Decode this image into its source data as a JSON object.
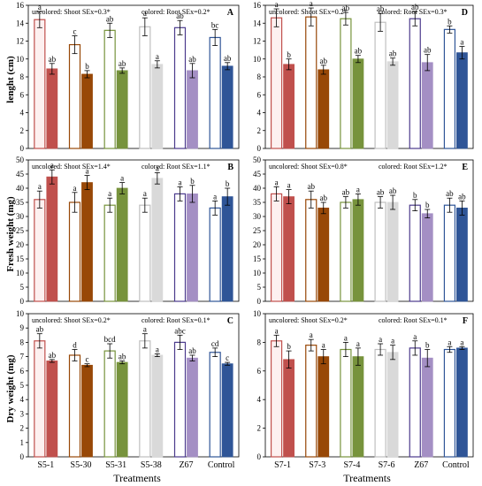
{
  "figure": {
    "x_title": "Treatments",
    "y_titles": [
      "lenght (cm)",
      "Fresh weight (mg)",
      "Dry weight (mg)"
    ]
  },
  "chart_data": [
    {
      "panel": "A",
      "type": "bar",
      "col": 0,
      "row": 0,
      "note_left": "uncolored: Shoot SEx=0.3*",
      "note_right": "colored: Root SEx=0.2*",
      "ylim": [
        0,
        16
      ],
      "yticks": [
        0,
        2,
        4,
        6,
        8,
        10,
        12,
        14,
        16
      ],
      "categories": [
        "S5-1",
        "S5-30",
        "S5-31",
        "S5-38",
        "Z67",
        "Control"
      ],
      "series": [
        {
          "values": [
            14.4,
            11.6,
            13.2,
            13.6,
            13.5,
            12.4
          ],
          "errors": [
            0.9,
            1.0,
            0.8,
            1.0,
            0.8,
            0.9
          ],
          "letters": [
            "a",
            "c",
            "ab",
            "a",
            "ab",
            "bc"
          ]
        },
        {
          "values": [
            8.9,
            8.3,
            8.7,
            9.4,
            8.7,
            9.2
          ],
          "errors": [
            0.6,
            0.4,
            0.3,
            0.4,
            0.8,
            0.4
          ],
          "letters": [
            "ab",
            "b",
            "ab",
            "a",
            "ab",
            "ab"
          ]
        }
      ]
    },
    {
      "panel": "D",
      "type": "bar",
      "col": 1,
      "row": 0,
      "note_left": "uncolored: Shoot SEx=0.2*",
      "note_right": "colored: Root SEx=0.3*",
      "ylim": [
        0,
        16
      ],
      "yticks": [
        0,
        2,
        4,
        6,
        8,
        10,
        12,
        14,
        16
      ],
      "categories": [
        "S7-1",
        "S7-3",
        "S7-4",
        "S7-6",
        "Z67",
        "Control"
      ],
      "series": [
        {
          "values": [
            14.6,
            14.7,
            14.5,
            14.1,
            14.5,
            13.3
          ],
          "errors": [
            1.0,
            1.0,
            0.7,
            1.0,
            0.8,
            0.4
          ],
          "letters": [
            "a",
            "a",
            "ab",
            "ab",
            "ab",
            "b"
          ]
        },
        {
          "values": [
            9.4,
            8.8,
            10.0,
            9.7,
            9.6,
            10.7
          ],
          "errors": [
            0.6,
            0.5,
            0.4,
            0.4,
            0.9,
            0.7
          ],
          "letters": [
            "b",
            "ab",
            "ab",
            "ab",
            "ab",
            "a"
          ]
        }
      ]
    },
    {
      "panel": "B",
      "type": "bar",
      "col": 0,
      "row": 1,
      "note_left": "uncolored: Shoot SEx=1.4*",
      "note_right": "colored: Root SEx=1.1*",
      "ylim": [
        0,
        50
      ],
      "yticks": [
        0,
        5,
        10,
        15,
        20,
        25,
        30,
        35,
        40,
        45,
        50
      ],
      "categories": [
        "S5-1",
        "S5-30",
        "S5-31",
        "S5-38",
        "Z67",
        "Control"
      ],
      "series": [
        {
          "values": [
            36,
            35,
            34,
            34,
            38,
            33
          ],
          "errors": [
            3,
            3.5,
            2.5,
            2.5,
            2.5,
            2.5
          ],
          "letters": [
            "a",
            "a",
            "a",
            "a",
            "a",
            "a"
          ]
        },
        {
          "values": [
            44,
            42,
            40,
            43.5,
            38,
            37
          ],
          "errors": [
            2.5,
            2.5,
            2,
            2,
            3,
            3
          ],
          "letters": [
            "a",
            "a",
            "a",
            "a",
            "b",
            "b"
          ]
        }
      ]
    },
    {
      "panel": "E",
      "type": "bar",
      "col": 1,
      "row": 1,
      "note_left": "uncolored: Shoot SEx=0.8*",
      "note_right": "colored: Root SEx=1.2*",
      "ylim": [
        0,
        50
      ],
      "yticks": [
        0,
        5,
        10,
        15,
        20,
        25,
        30,
        35,
        40,
        45,
        50
      ],
      "categories": [
        "S7-1",
        "S7-3",
        "S7-4",
        "S7-6",
        "Z67",
        "Control"
      ],
      "series": [
        {
          "values": [
            38,
            36,
            35,
            35,
            34,
            34
          ],
          "errors": [
            2.5,
            3,
            2,
            2,
            2,
            2.5
          ],
          "letters": [
            "a",
            "ab",
            "ab",
            "ab",
            "b",
            "ab"
          ]
        },
        {
          "values": [
            37,
            33,
            36,
            35,
            31,
            33
          ],
          "errors": [
            2.5,
            2,
            2,
            2.5,
            1.5,
            2.5
          ],
          "letters": [
            "a",
            "ab",
            "a",
            "ab",
            "b",
            "ab"
          ]
        }
      ]
    },
    {
      "panel": "C",
      "type": "bar",
      "col": 0,
      "row": 2,
      "note_left": "uncolored: Shoot SEx=0.2*",
      "note_right": "colored: Root SEx=0.1*",
      "ylim": [
        0,
        10
      ],
      "yticks": [
        0,
        1,
        2,
        3,
        4,
        5,
        6,
        7,
        8,
        9,
        10
      ],
      "categories": [
        "S5-1",
        "S5-30",
        "S5-31",
        "S5-38",
        "Z67",
        "Control"
      ],
      "series": [
        {
          "values": [
            8.1,
            7.1,
            7.4,
            8.1,
            8.0,
            7.3
          ],
          "errors": [
            0.5,
            0.4,
            0.5,
            0.5,
            0.5,
            0.3
          ],
          "letters": [
            "ab",
            "d",
            "bcd",
            "a",
            "abc",
            "cd"
          ]
        },
        {
          "values": [
            6.7,
            6.4,
            6.6,
            7.1,
            6.9,
            6.5
          ],
          "errors": [
            0.1,
            0.1,
            0.1,
            0.1,
            0.2,
            0.1
          ],
          "letters": [
            "ab",
            "c",
            "ab",
            "a",
            "ab",
            "c"
          ]
        }
      ]
    },
    {
      "panel": "F",
      "type": "bar",
      "col": 1,
      "row": 2,
      "note_left": "uncolored: Shoot SEx=0.2*",
      "note_right": "colored: Root SEx=0.1*",
      "ylim": [
        0,
        10
      ],
      "yticks": [
        0,
        2,
        4,
        6,
        8,
        10
      ],
      "categories": [
        "S7-1",
        "S7-3",
        "S7-4",
        "S7-6",
        "Z67",
        "Control"
      ],
      "series": [
        {
          "values": [
            8.1,
            7.8,
            7.5,
            7.5,
            7.6,
            7.5
          ],
          "errors": [
            0.4,
            0.4,
            0.5,
            0.4,
            0.5,
            0.2
          ],
          "letters": [
            "a",
            "a",
            "a",
            "a",
            "a",
            "a"
          ]
        },
        {
          "values": [
            6.8,
            7.0,
            7.0,
            7.3,
            6.9,
            7.6
          ],
          "errors": [
            0.6,
            0.5,
            0.6,
            0.5,
            0.6,
            0.1
          ],
          "letters": [
            "b",
            "a",
            "a",
            "a",
            "b",
            "a"
          ]
        }
      ]
    }
  ],
  "colors": {
    "treatments": [
      "#c0504d",
      "#984807",
      "#77933c",
      "#d9d9d9",
      "#a48fc4",
      "#2f5597"
    ],
    "shoot_fills": [
      "#fdf0f0",
      "#ffffff",
      "#ffffff",
      "#ffffff",
      "#ffffff",
      "#ffffff"
    ],
    "shoot_edges": [
      "#c0504d",
      "#984807",
      "#77933c",
      "#bfbfbf",
      "#4b3a8c",
      "#2f5597"
    ],
    "axis": "#000000"
  }
}
